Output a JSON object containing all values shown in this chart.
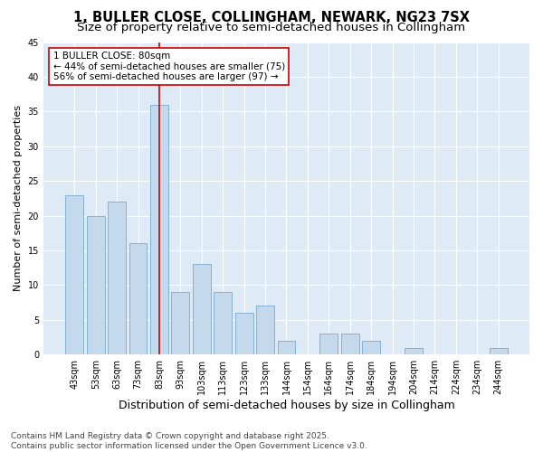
{
  "title1": "1, BULLER CLOSE, COLLINGHAM, NEWARK, NG23 7SX",
  "title2": "Size of property relative to semi-detached houses in Collingham",
  "xlabel": "Distribution of semi-detached houses by size in Collingham",
  "ylabel": "Number of semi-detached properties",
  "bar_color": "#c5d9ed",
  "bar_edge_color": "#7aaad0",
  "bg_color": "#deeaf6",
  "categories": [
    "43sqm",
    "53sqm",
    "63sqm",
    "73sqm",
    "83sqm",
    "93sqm",
    "103sqm",
    "113sqm",
    "123sqm",
    "133sqm",
    "144sqm",
    "154sqm",
    "164sqm",
    "174sqm",
    "184sqm",
    "194sqm",
    "204sqm",
    "214sqm",
    "224sqm",
    "234sqm",
    "244sqm"
  ],
  "values": [
    23,
    20,
    22,
    16,
    36,
    9,
    13,
    9,
    6,
    7,
    2,
    0,
    3,
    3,
    2,
    0,
    1,
    0,
    0,
    0,
    1
  ],
  "vline_x": 4,
  "vline_color": "#cc0000",
  "annotation_line1": "1 BULLER CLOSE: 80sqm",
  "annotation_line2": "← 44% of semi-detached houses are smaller (75)",
  "annotation_line3": "56% of semi-detached houses are larger (97) →",
  "annotation_box_color": "#ffffff",
  "annotation_box_edge": "#cc0000",
  "ylim": [
    0,
    45
  ],
  "yticks": [
    0,
    5,
    10,
    15,
    20,
    25,
    30,
    35,
    40,
    45
  ],
  "footnote": "Contains HM Land Registry data © Crown copyright and database right 2025.\nContains public sector information licensed under the Open Government Licence v3.0.",
  "title1_fontsize": 10.5,
  "title2_fontsize": 9.5,
  "xlabel_fontsize": 9,
  "ylabel_fontsize": 8,
  "tick_fontsize": 7,
  "annotation_fontsize": 7.5,
  "footnote_fontsize": 6.5
}
